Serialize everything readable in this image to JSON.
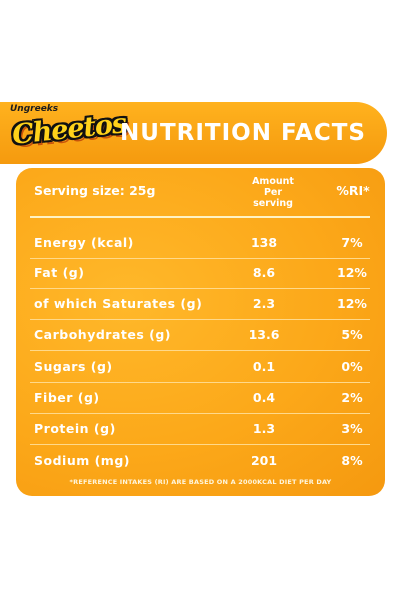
{
  "brand": {
    "tagline": "Ungreeks",
    "name": "Cheetos"
  },
  "title": "NUTRITION FACTS",
  "table": {
    "serving_label": "Serving size: 25g",
    "amount_header_line1": "Amount",
    "amount_header_line2": "Per",
    "amount_header_line3": "serving",
    "ri_header": "%RI*",
    "rows": [
      {
        "label": "Energy (kcal)",
        "amount": "138",
        "ri": "7%"
      },
      {
        "label": "Fat (g)",
        "amount": "8.6",
        "ri": "12%"
      },
      {
        "label": "of which Saturates (g)",
        "amount": "2.3",
        "ri": "12%"
      },
      {
        "label": "Carbohydrates (g)",
        "amount": "13.6",
        "ri": "5%"
      },
      {
        "label": "Sugars (g)",
        "amount": "0.1",
        "ri": "0%"
      },
      {
        "label": "Fiber (g)",
        "amount": "0.4",
        "ri": "2%"
      },
      {
        "label": "Protein (g)",
        "amount": "1.3",
        "ri": "3%"
      },
      {
        "label": "Sodium (mg)",
        "amount": "201",
        "ri": "8%"
      }
    ]
  },
  "footnote": "*REFERENCE INTAKES (RI) ARE BASED ON A 2000KCAL DIET PER DAY",
  "colors": {
    "orange": "#f8a412",
    "header_orange": "#ffb21e",
    "logo_yellow": "#ffd21a",
    "text": "#ffffff"
  }
}
